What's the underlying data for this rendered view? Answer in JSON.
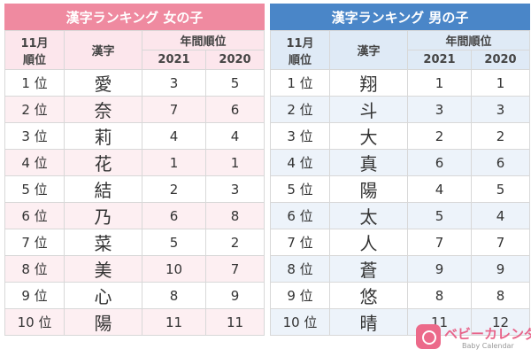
{
  "tables": [
    {
      "title": "漢字ランキング 女の子",
      "header": {
        "rank": [
          "11月",
          "順位"
        ],
        "kanji": "漢字",
        "annual": "年間順位",
        "years": [
          "2021",
          "2020"
        ]
      },
      "rows": [
        [
          "1 位",
          "愛",
          3,
          5
        ],
        [
          "2 位",
          "奈",
          7,
          6
        ],
        [
          "3 位",
          "莉",
          4,
          4
        ],
        [
          "4 位",
          "花",
          1,
          1
        ],
        [
          "5 位",
          "結",
          2,
          3
        ],
        [
          "6 位",
          "乃",
          6,
          8
        ],
        [
          "7 位",
          "菜",
          5,
          2
        ],
        [
          "8 位",
          "美",
          10,
          7
        ],
        [
          "9 位",
          "心",
          8,
          9
        ],
        [
          "10 位",
          "陽",
          11,
          11
        ]
      ]
    },
    {
      "title": "漢字ランキング 男の子",
      "header": {
        "rank": [
          "11月",
          "順位"
        ],
        "kanji": "漢字",
        "annual": "年間順位",
        "years": [
          "2021",
          "2020"
        ]
      },
      "rows": [
        [
          "1 位",
          "翔",
          1,
          1
        ],
        [
          "2 位",
          "斗",
          3,
          3
        ],
        [
          "3 位",
          "大",
          2,
          2
        ],
        [
          "4 位",
          "真",
          6,
          6
        ],
        [
          "5 位",
          "陽",
          4,
          5
        ],
        [
          "6 位",
          "太",
          5,
          4
        ],
        [
          "7 位",
          "人",
          7,
          7
        ],
        [
          "8 位",
          "蒼",
          9,
          9
        ],
        [
          "9 位",
          "悠",
          8,
          8
        ],
        [
          "10 位",
          "晴",
          11,
          12
        ]
      ]
    }
  ],
  "logo": {
    "name": "ベビーカレンダー",
    "sub": "Baby Calendar"
  }
}
